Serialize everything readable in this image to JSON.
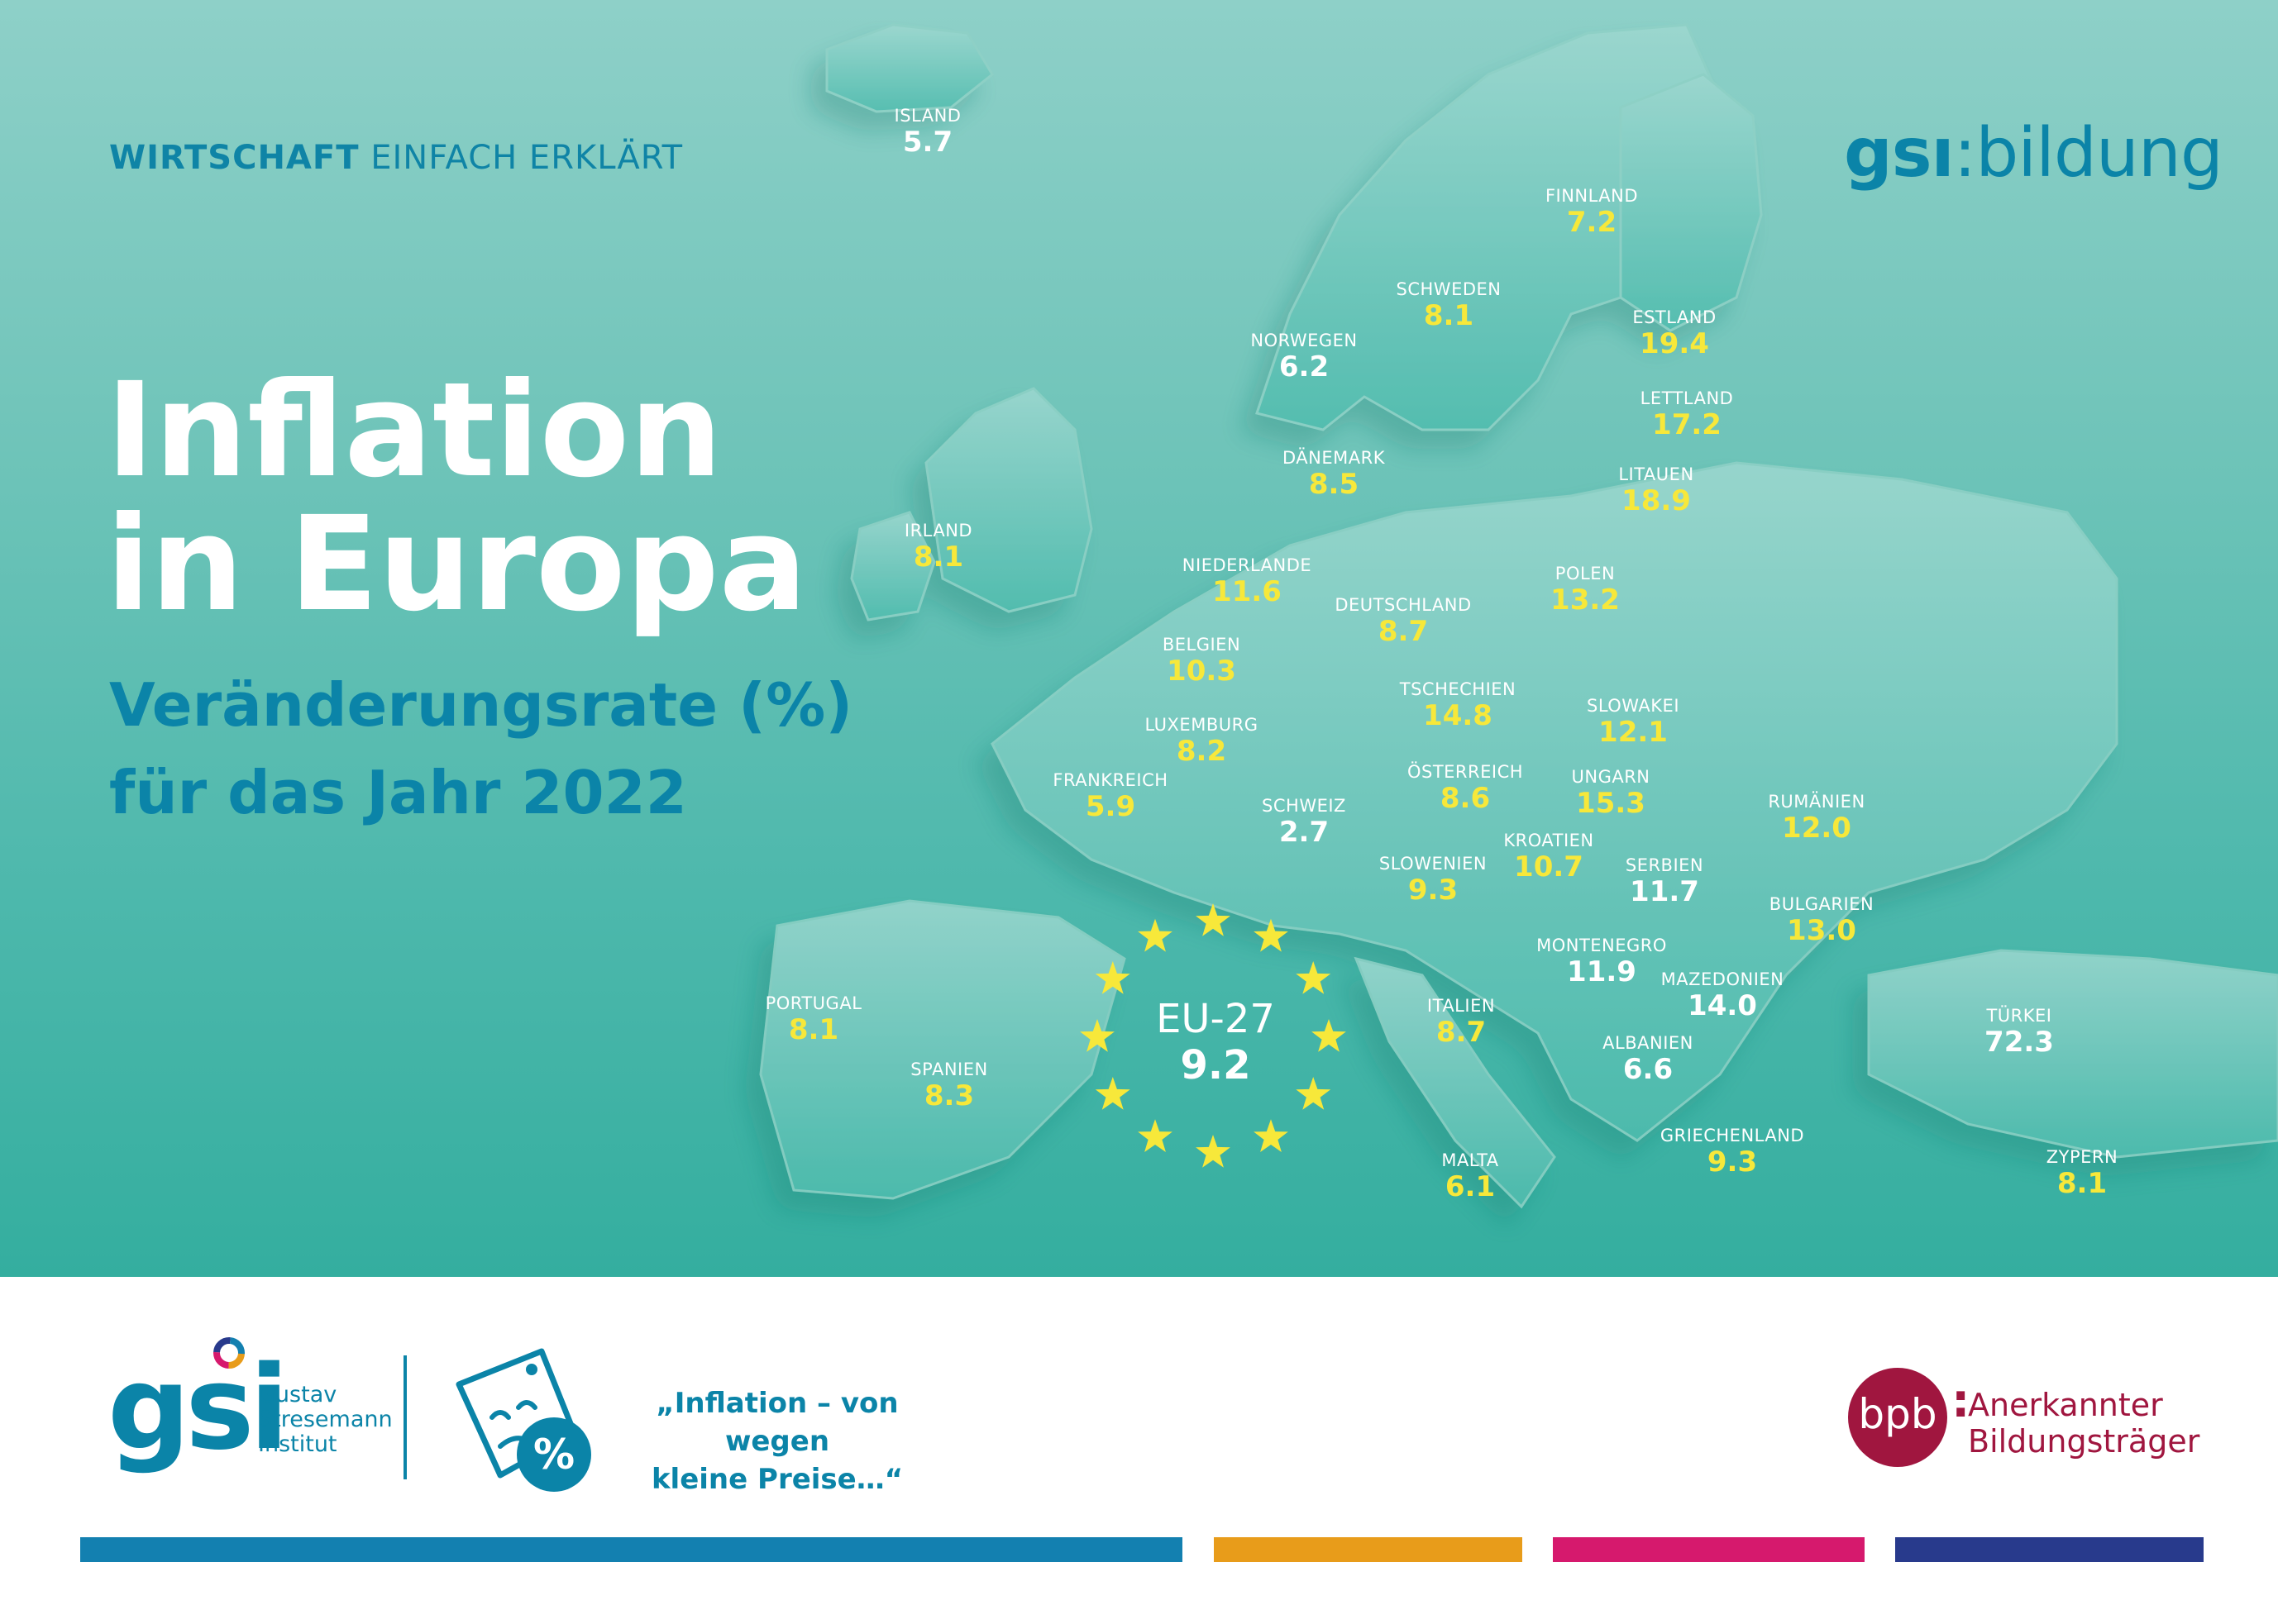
{
  "header": {
    "kicker_bold": "WIRTSCHAFT",
    "kicker_rest": " EINFACH ERKLÄRT",
    "brand_bold": "gsı",
    "brand_rest": ":bildung"
  },
  "title": {
    "line1": "Inflation",
    "line2": "in Europa",
    "sub1": "Veränderungsrate (%)",
    "sub2": "für das Jahr 2022"
  },
  "eu": {
    "name": "EU-27",
    "value": "9.2"
  },
  "colors": {
    "value_yellow": "#f7e83a",
    "value_white": "#ffffff",
    "brand_blue": "#0b84a8",
    "bpb_red": "#a0163f",
    "bar_blue": "#1380b0",
    "bar_orange": "#e89c1a",
    "bar_magenta": "#d6196d",
    "bar_navy": "#283a8c"
  },
  "countries": [
    {
      "name": "ISLAND",
      "value": "5.7",
      "color": "white"
    },
    {
      "name": "FINNLAND",
      "value": "7.2",
      "color": "yellow"
    },
    {
      "name": "SCHWEDEN",
      "value": "8.1",
      "color": "yellow"
    },
    {
      "name": "NORWEGEN",
      "value": "6.2",
      "color": "white"
    },
    {
      "name": "ESTLAND",
      "value": "19.4",
      "color": "yellow"
    },
    {
      "name": "LETTLAND",
      "value": "17.2",
      "color": "yellow"
    },
    {
      "name": "DÄNEMARK",
      "value": "8.5",
      "color": "yellow"
    },
    {
      "name": "LITAUEN",
      "value": "18.9",
      "color": "yellow"
    },
    {
      "name": "IRLAND",
      "value": "8.1",
      "color": "yellow"
    },
    {
      "name": "NIEDERLANDE",
      "value": "11.6",
      "color": "yellow"
    },
    {
      "name": "POLEN",
      "value": "13.2",
      "color": "yellow"
    },
    {
      "name": "DEUTSCHLAND",
      "value": "8.7",
      "color": "yellow"
    },
    {
      "name": "BELGIEN",
      "value": "10.3",
      "color": "yellow"
    },
    {
      "name": "TSCHECHIEN",
      "value": "14.8",
      "color": "yellow"
    },
    {
      "name": "SLOWAKEI",
      "value": "12.1",
      "color": "yellow"
    },
    {
      "name": "LUXEMBURG",
      "value": "8.2",
      "color": "yellow"
    },
    {
      "name": "FRANKREICH",
      "value": "5.9",
      "color": "yellow"
    },
    {
      "name": "ÖSTERREICH",
      "value": "8.6",
      "color": "yellow"
    },
    {
      "name": "UNGARN",
      "value": "15.3",
      "color": "yellow"
    },
    {
      "name": "SCHWEIZ",
      "value": "2.7",
      "color": "white"
    },
    {
      "name": "RUMÄNIEN",
      "value": "12.0",
      "color": "yellow"
    },
    {
      "name": "KROATIEN",
      "value": "10.7",
      "color": "yellow"
    },
    {
      "name": "SLOWENIEN",
      "value": "9.3",
      "color": "yellow"
    },
    {
      "name": "SERBIEN",
      "value": "11.7",
      "color": "white"
    },
    {
      "name": "BULGARIEN",
      "value": "13.0",
      "color": "yellow"
    },
    {
      "name": "MONTENEGRO",
      "value": "11.9",
      "color": "white"
    },
    {
      "name": "MAZEDONIEN",
      "value": "14.0",
      "color": "white"
    },
    {
      "name": "PORTUGAL",
      "value": "8.1",
      "color": "yellow"
    },
    {
      "name": "ITALIEN",
      "value": "8.7",
      "color": "yellow"
    },
    {
      "name": "TÜRKEI",
      "value": "72.3",
      "color": "white"
    },
    {
      "name": "ALBANIEN",
      "value": "6.6",
      "color": "white"
    },
    {
      "name": "SPANIEN",
      "value": "8.3",
      "color": "yellow"
    },
    {
      "name": "GRIECHENLAND",
      "value": "9.3",
      "color": "yellow"
    },
    {
      "name": "MALTA",
      "value": "6.1",
      "color": "yellow"
    },
    {
      "name": "ZYPERN",
      "value": "8.1",
      "color": "yellow"
    }
  ],
  "footer": {
    "gsi_logo": "gsi",
    "gsi_line1": "Gustav",
    "gsi_line2": "Stresemann",
    "gsi_line3": "Institut",
    "campaign_line1": "„Inflation – von wegen",
    "campaign_line2": "kleine Preise…“",
    "bpb_logo": "bpb",
    "bpb_line1": "Anerkannter",
    "bpb_line2": "Bildungsträger",
    "percent_symbol": "%"
  }
}
